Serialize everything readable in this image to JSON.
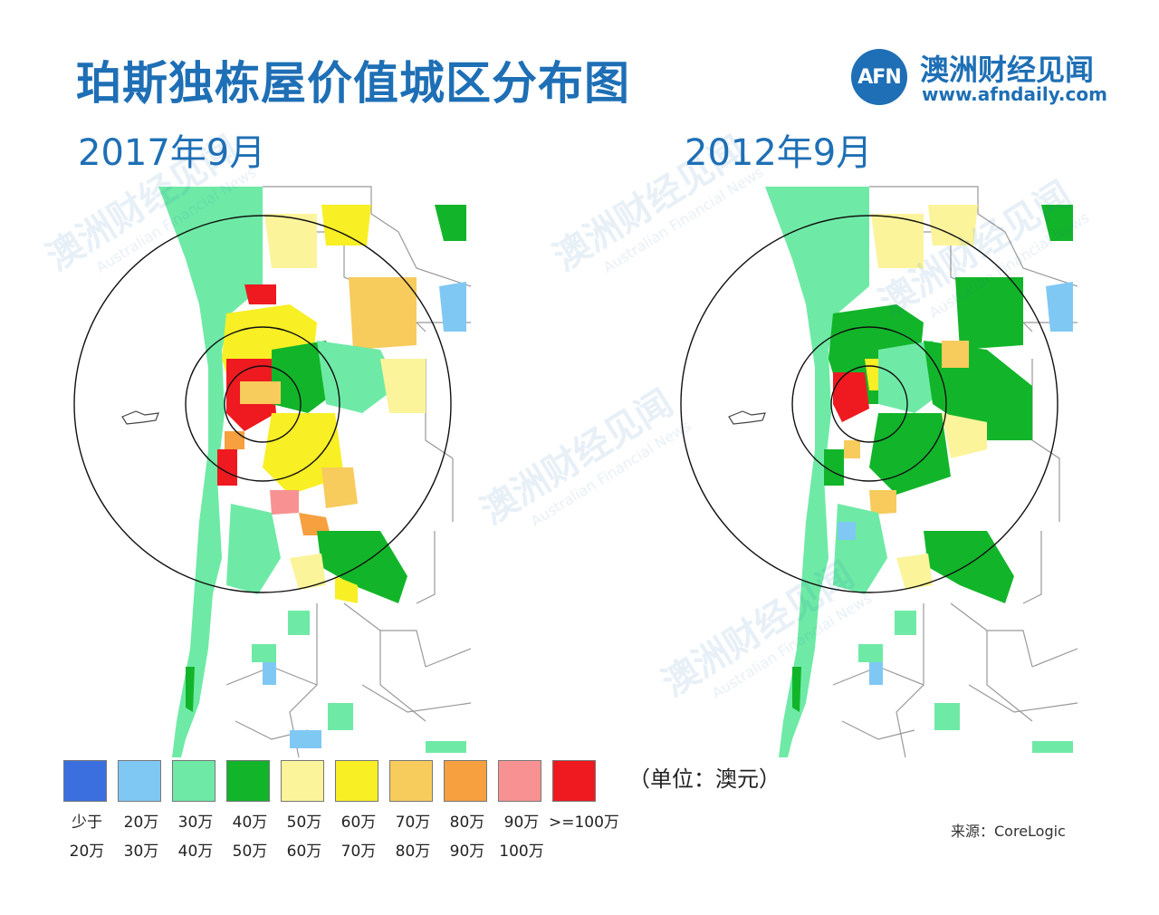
{
  "title": "珀斯独栋屋价值城区分布图",
  "maps": [
    {
      "label": "2017年9月"
    },
    {
      "label": "2012年9月"
    }
  ],
  "logo": {
    "mark": "AFN",
    "name": "澳洲财经见闻",
    "url": "www.afndaily.com"
  },
  "watermark": {
    "name": "澳洲财经见闻",
    "sub": "Australian Financial News"
  },
  "legend": {
    "items": [
      {
        "range_top": "少于",
        "range_bottom": "20万",
        "color": "#3b6fe0"
      },
      {
        "range_top": "20万",
        "range_bottom": "30万",
        "color": "#7fc8f4"
      },
      {
        "range_top": "30万",
        "range_bottom": "40万",
        "color": "#6eeaa6"
      },
      {
        "range_top": "40万",
        "range_bottom": "50万",
        "color": "#12b52a"
      },
      {
        "range_top": "50万",
        "range_bottom": "60万",
        "color": "#fbf49a"
      },
      {
        "range_top": "60万",
        "range_bottom": "70万",
        "color": "#f8ef24"
      },
      {
        "range_top": "70万",
        "range_bottom": "80万",
        "color": "#f7cb5c"
      },
      {
        "range_top": "80万",
        "range_bottom": "90万",
        "color": "#f6a03f"
      },
      {
        "range_top": "90万",
        "range_bottom": "100万",
        "color": "#f89292"
      },
      {
        "range_top": ">=100万",
        "range_bottom": "",
        "color": "#ee1a1f"
      }
    ],
    "unit_note": "（单位：澳元）"
  },
  "source": "来源：CoreLogic"
}
